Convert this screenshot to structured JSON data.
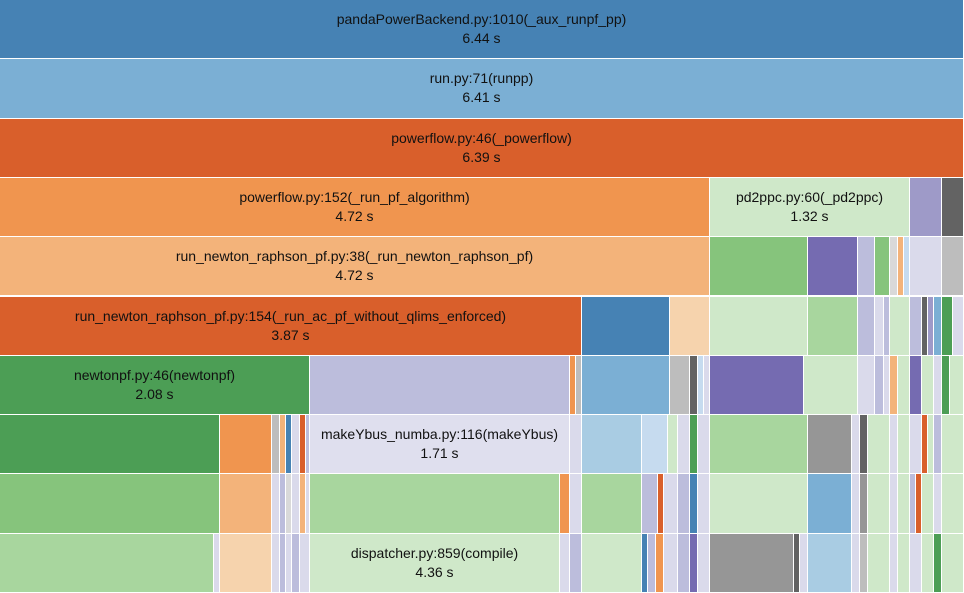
{
  "chart_data": {
    "type": "icicle",
    "time_unit": "s",
    "frames": [
      {
        "level": 0,
        "name": "pandaPowerBackend.py:1010(_aux_runpf_pp)",
        "time": "6.44 s",
        "color": "#4682b4"
      },
      {
        "level": 1,
        "name": "run.py:71(runpp)",
        "time": "6.41 s",
        "color": "#7bafd4"
      },
      {
        "level": 2,
        "name": "powerflow.py:46(_powerflow)",
        "time": "6.39 s",
        "color": "#d95f2b"
      },
      {
        "level": 3,
        "name": "powerflow.py:152(_run_pf_algorithm)",
        "time": "4.72 s",
        "color": "#f0954f"
      },
      {
        "level": 3,
        "name": "pd2ppc.py:60(_pd2ppc)",
        "time": "1.32 s",
        "color": "#cfe8c9"
      },
      {
        "level": 4,
        "name": "run_newton_raphson_pf.py:38(_run_newton_raphson_pf)",
        "time": "4.72 s",
        "color": "#f3b37a"
      },
      {
        "level": 5,
        "name": "run_newton_raphson_pf.py:154(_run_ac_pf_without_qlims_enforced)",
        "time": "3.87 s",
        "color": "#d95f2b"
      },
      {
        "level": 6,
        "name": "newtonpf.py:46(newtonpf)",
        "time": "2.08 s",
        "color": "#4c9e55"
      },
      {
        "level": 7,
        "name": "makeYbus_numba.py:116(makeYbus)",
        "time": "1.71 s",
        "color": "#dfdfee"
      },
      {
        "level": 9,
        "name": "dispatcher.py:859(compile)",
        "time": "4.36 s",
        "color": "#cfe8c9"
      }
    ]
  }
}
